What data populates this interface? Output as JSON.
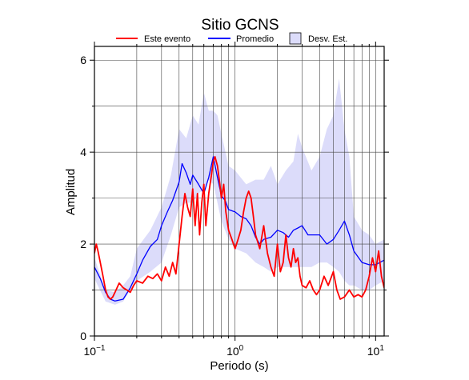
{
  "chart_data": {
    "type": "line",
    "title": "Sitio GCNS",
    "xlabel": "Periodo (s)",
    "ylabel": "Amplitud",
    "x_scale": "log",
    "xlim": [
      0.1,
      11.5
    ],
    "ylim": [
      0,
      6.3
    ],
    "grid": true,
    "legend_position": "top",
    "x_major_ticks": [
      {
        "value": 0.1,
        "base": "10",
        "exp": "−1"
      },
      {
        "value": 1,
        "label": "10",
        "exp": "0"
      },
      {
        "value": 10,
        "label": "10",
        "exp": "1"
      }
    ],
    "y_ticks": [
      {
        "value": 0,
        "label": "0"
      },
      {
        "value": 2,
        "label": "2"
      },
      {
        "value": 4,
        "label": "4"
      },
      {
        "value": 6,
        "label": "6"
      }
    ],
    "legend": [
      {
        "label": "Este evento",
        "kind": "line",
        "color": "#ff0000"
      },
      {
        "label": "Promedio",
        "kind": "line",
        "color": "#0000ff"
      },
      {
        "label": "Desv. Est.",
        "kind": "box",
        "color": "#dcdcfa"
      }
    ],
    "band": {
      "name": "Desv. Est.",
      "color": "#dcdcfa",
      "x": [
        0.1,
        0.12,
        0.14,
        0.16,
        0.18,
        0.2,
        0.25,
        0.3,
        0.35,
        0.4,
        0.45,
        0.5,
        0.55,
        0.6,
        0.65,
        0.7,
        0.75,
        0.8,
        0.9,
        1.0,
        1.2,
        1.4,
        1.6,
        1.8,
        2.0,
        2.3,
        2.6,
        2.8,
        3.0,
        3.5,
        4.0,
        4.5,
        5.0,
        5.5,
        6.0,
        6.5,
        7.0,
        8.0,
        9.0,
        10.0,
        11.5
      ],
      "upper": [
        1.7,
        1.0,
        0.95,
        1.1,
        1.3,
        1.9,
        2.3,
        2.8,
        3.5,
        4.5,
        4.3,
        4.8,
        4.6,
        5.3,
        4.9,
        4.9,
        4.8,
        4.4,
        3.7,
        3.6,
        3.3,
        3.4,
        3.4,
        3.7,
        3.3,
        3.6,
        3.8,
        4.4,
        4.1,
        3.6,
        3.9,
        4.5,
        4.8,
        5.6,
        4.5,
        3.9,
        2.6,
        2.3,
        2.2,
        2.0,
        2.1
      ],
      "lower": [
        1.25,
        0.75,
        0.68,
        0.75,
        1.0,
        1.2,
        1.4,
        1.6,
        2.2,
        2.8,
        2.9,
        2.9,
        3.1,
        3.2,
        3.4,
        3.3,
        2.9,
        2.5,
        2.1,
        1.9,
        1.8,
        1.6,
        1.5,
        1.4,
        1.5,
        1.5,
        1.5,
        1.5,
        1.5,
        1.5,
        1.6,
        1.6,
        1.5,
        1.4,
        1.2,
        1.1,
        1.1,
        1.0,
        1.0,
        1.1,
        1.2
      ]
    },
    "series": [
      {
        "name": "Promedio",
        "color": "#0000ff",
        "x": [
          0.1,
          0.11,
          0.12,
          0.13,
          0.14,
          0.16,
          0.18,
          0.2,
          0.22,
          0.25,
          0.28,
          0.3,
          0.33,
          0.36,
          0.4,
          0.42,
          0.45,
          0.48,
          0.5,
          0.55,
          0.6,
          0.65,
          0.7,
          0.75,
          0.8,
          0.85,
          0.9,
          1.0,
          1.1,
          1.2,
          1.3,
          1.4,
          1.5,
          1.6,
          1.8,
          2.0,
          2.2,
          2.4,
          2.6,
          2.8,
          3.0,
          3.3,
          3.6,
          4.0,
          4.5,
          5.0,
          5.5,
          6.0,
          6.5,
          7.0,
          8.0,
          9.0,
          10.0,
          11.5
        ],
        "y": [
          1.5,
          1.25,
          0.95,
          0.8,
          0.76,
          0.8,
          1.05,
          1.35,
          1.65,
          1.95,
          2.1,
          2.4,
          2.7,
          2.95,
          3.35,
          3.75,
          3.55,
          3.3,
          3.5,
          3.3,
          3.1,
          3.45,
          3.9,
          3.45,
          3.05,
          2.95,
          2.75,
          2.7,
          2.6,
          2.55,
          2.4,
          2.15,
          2.0,
          2.1,
          2.15,
          2.3,
          2.25,
          2.15,
          2.3,
          2.35,
          2.4,
          2.2,
          2.2,
          2.2,
          2.0,
          2.1,
          2.3,
          2.5,
          2.2,
          1.85,
          1.6,
          1.55,
          1.55,
          1.65
        ]
      },
      {
        "name": "Este evento",
        "color": "#ff0000",
        "x": [
          0.1,
          0.103,
          0.106,
          0.11,
          0.115,
          0.12,
          0.125,
          0.13,
          0.135,
          0.14,
          0.15,
          0.16,
          0.17,
          0.18,
          0.19,
          0.2,
          0.22,
          0.24,
          0.26,
          0.28,
          0.3,
          0.32,
          0.34,
          0.36,
          0.38,
          0.4,
          0.42,
          0.44,
          0.46,
          0.48,
          0.5,
          0.52,
          0.54,
          0.56,
          0.58,
          0.6,
          0.62,
          0.65,
          0.68,
          0.7,
          0.72,
          0.75,
          0.78,
          0.8,
          0.83,
          0.86,
          0.9,
          0.95,
          1.0,
          1.05,
          1.1,
          1.15,
          1.2,
          1.25,
          1.3,
          1.35,
          1.4,
          1.5,
          1.6,
          1.7,
          1.8,
          1.9,
          2.0,
          2.1,
          2.2,
          2.3,
          2.4,
          2.5,
          2.6,
          2.7,
          2.8,
          2.9,
          3.0,
          3.2,
          3.4,
          3.6,
          3.8,
          4.0,
          4.3,
          4.6,
          5.0,
          5.3,
          5.6,
          6.0,
          6.5,
          7.0,
          7.5,
          8.0,
          8.5,
          9.0,
          9.5,
          10.0,
          10.5,
          11.0,
          11.5
        ],
        "y": [
          1.8,
          2.0,
          1.85,
          1.6,
          1.3,
          1.0,
          0.85,
          0.8,
          0.85,
          0.95,
          1.15,
          1.05,
          1.0,
          0.95,
          1.1,
          1.2,
          1.15,
          1.3,
          1.25,
          1.35,
          1.2,
          1.5,
          1.3,
          1.6,
          1.35,
          2.0,
          2.6,
          3.1,
          2.8,
          2.6,
          3.2,
          2.4,
          3.1,
          2.2,
          2.9,
          3.3,
          2.4,
          3.1,
          3.5,
          3.8,
          3.9,
          3.7,
          3.3,
          3.0,
          3.3,
          2.7,
          2.3,
          2.1,
          1.9,
          2.1,
          2.3,
          2.7,
          3.0,
          3.15,
          3.0,
          2.6,
          2.2,
          1.9,
          2.4,
          1.8,
          1.5,
          1.3,
          2.0,
          1.4,
          1.6,
          2.2,
          1.7,
          1.5,
          1.9,
          1.6,
          1.7,
          1.3,
          1.1,
          1.05,
          1.2,
          1.0,
          0.9,
          1.0,
          1.3,
          1.1,
          1.4,
          1.0,
          0.8,
          0.85,
          1.0,
          0.85,
          0.9,
          0.85,
          1.0,
          1.3,
          1.7,
          1.4,
          1.85,
          1.3,
          1.05
        ]
      }
    ]
  }
}
